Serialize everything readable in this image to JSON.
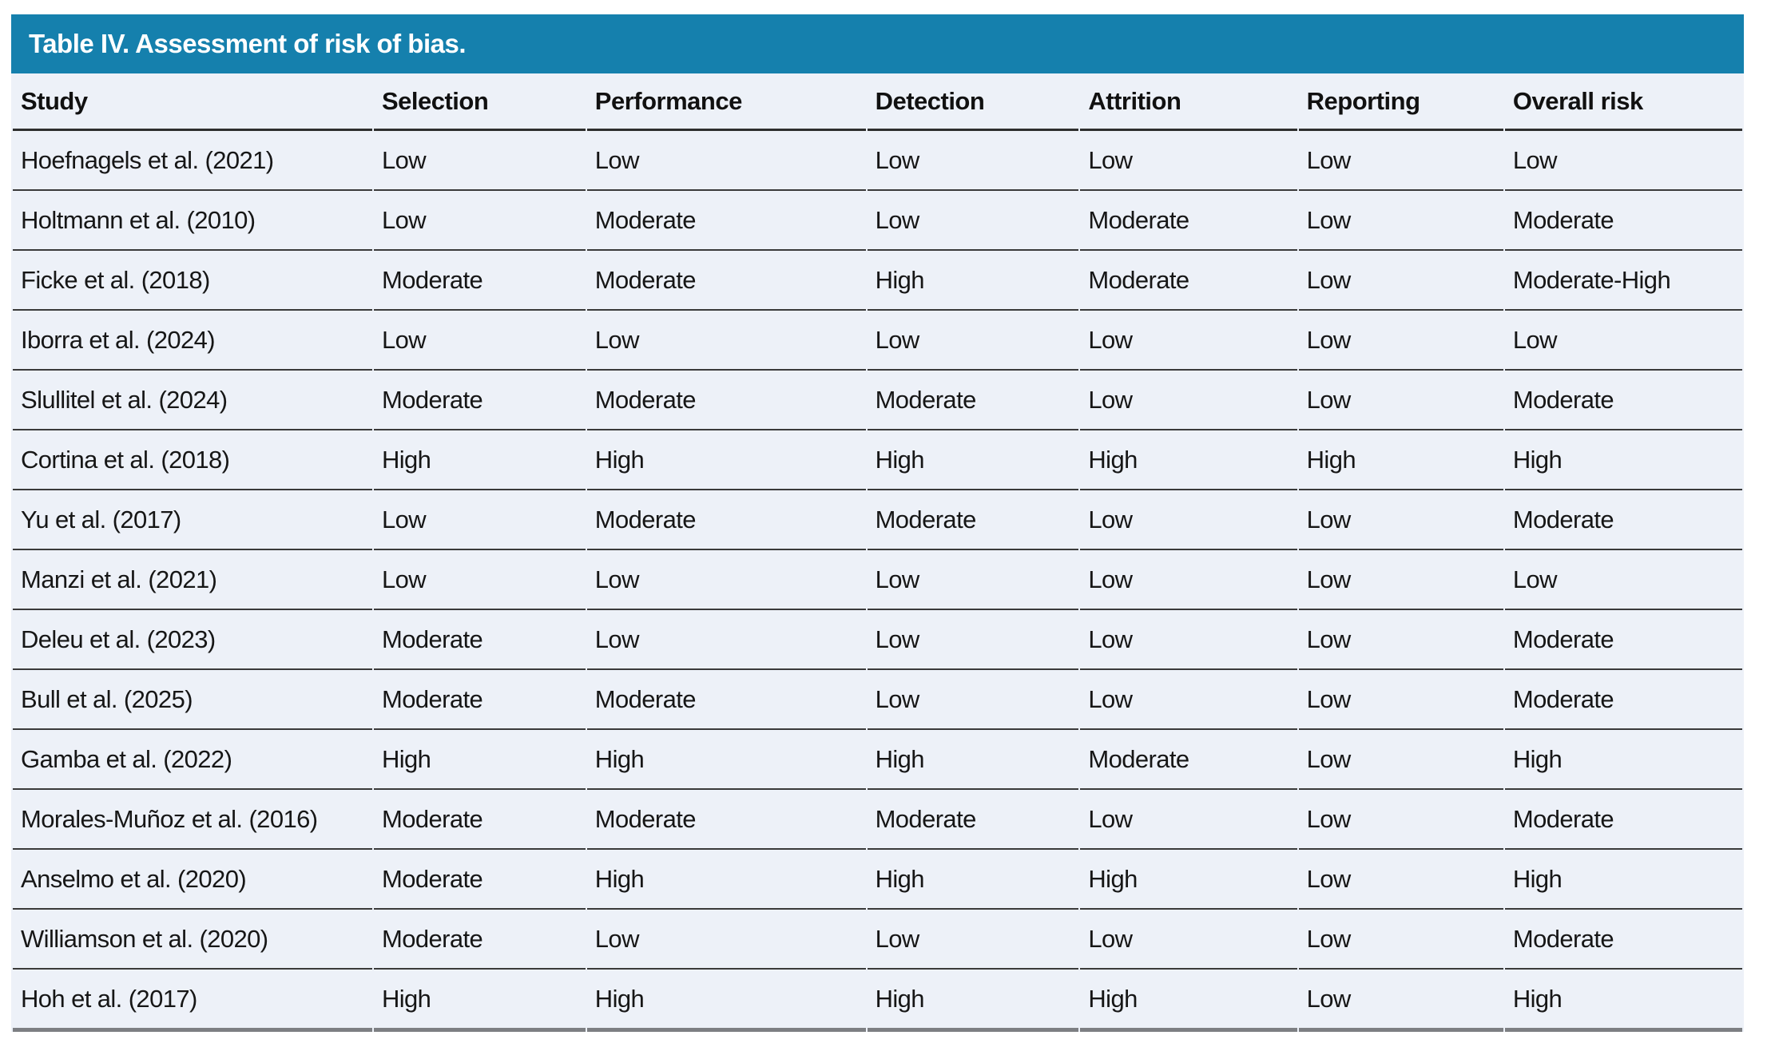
{
  "table": {
    "title": "Table IV. Assessment of risk of bias.",
    "columns": [
      "Study",
      "Selection",
      "Performance",
      "Detection",
      "Attrition",
      "Reporting",
      "Overall risk"
    ],
    "rows": [
      [
        "Hoefnagels et al. (2021)",
        "Low",
        "Low",
        "Low",
        "Low",
        "Low",
        "Low"
      ],
      [
        "Holtmann et al. (2010)",
        "Low",
        "Moderate",
        "Low",
        "Moderate",
        "Low",
        "Moderate"
      ],
      [
        "Ficke et al. (2018)",
        "Moderate",
        "Moderate",
        "High",
        "Moderate",
        "Low",
        "Moderate-High"
      ],
      [
        "Iborra et al. (2024)",
        "Low",
        "Low",
        "Low",
        "Low",
        "Low",
        "Low"
      ],
      [
        "Slullitel et al. (2024)",
        "Moderate",
        "Moderate",
        "Moderate",
        "Low",
        "Low",
        "Moderate"
      ],
      [
        "Cortina et al. (2018)",
        "High",
        "High",
        "High",
        "High",
        "High",
        "High"
      ],
      [
        "Yu et al. (2017)",
        "Low",
        "Moderate",
        "Moderate",
        "Low",
        "Low",
        "Moderate"
      ],
      [
        "Manzi et al. (2021)",
        "Low",
        "Low",
        "Low",
        "Low",
        "Low",
        "Low"
      ],
      [
        "Deleu et al. (2023)",
        "Moderate",
        "Low",
        "Low",
        "Low",
        "Low",
        "Moderate"
      ],
      [
        "Bull et al. (2025)",
        "Moderate",
        "Moderate",
        "Low",
        "Low",
        "Low",
        "Moderate"
      ],
      [
        "Gamba et al. (2022)",
        "High",
        "High",
        "High",
        "Moderate",
        "Low",
        "High"
      ],
      [
        "Morales-Muñoz et al. (2016)",
        "Moderate",
        "Moderate",
        "Moderate",
        "Low",
        "Low",
        "Moderate"
      ],
      [
        "Anselmo et al. (2020)",
        "Moderate",
        "High",
        "High",
        "High",
        "Low",
        "High"
      ],
      [
        "Williamson et al. (2020)",
        "Moderate",
        "Low",
        "Low",
        "Low",
        "Low",
        "Moderate"
      ],
      [
        "Hoh et al. (2017)",
        "High",
        "High",
        "High",
        "High",
        "Low",
        "High"
      ]
    ],
    "colors": {
      "title_bg": "#1580ad",
      "title_text": "#ffffff",
      "row_bg": "#edf1f8",
      "header_rule": "#2e2e2e",
      "row_rule": "#3a3a3a",
      "bottom_rule": "#7d7f83",
      "cell_text": "#161616"
    }
  }
}
